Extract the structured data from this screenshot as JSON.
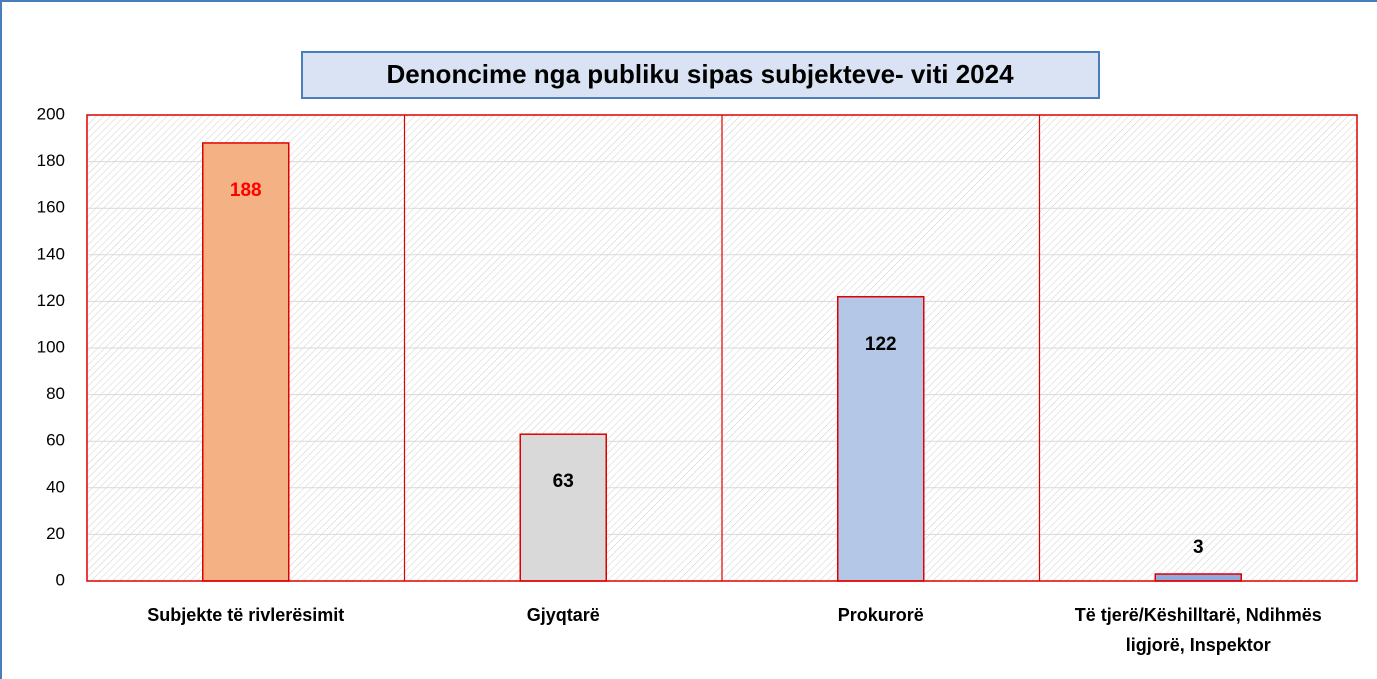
{
  "chart_data": {
    "type": "bar",
    "title": "Denoncime nga publiku sipas subjekteve- viti 2024",
    "categories": [
      "Subjekte të rivlerësimit",
      "Gjyqtarë",
      "Prokurorë",
      "Të tjerë/Këshilltarë, Ndihmës ligjorë, Inspektor"
    ],
    "values": [
      188,
      63,
      122,
      3
    ],
    "colors": [
      "#f4b183",
      "#d9d9d9",
      "#b4c7e7",
      "#8faadc"
    ],
    "value_label_colors": [
      "#ff0000",
      "#000000",
      "#000000",
      "#000000"
    ],
    "ylim": [
      0,
      200
    ],
    "yticks": [
      0,
      20,
      40,
      60,
      80,
      100,
      120,
      140,
      160,
      180,
      200
    ],
    "grid": true
  }
}
